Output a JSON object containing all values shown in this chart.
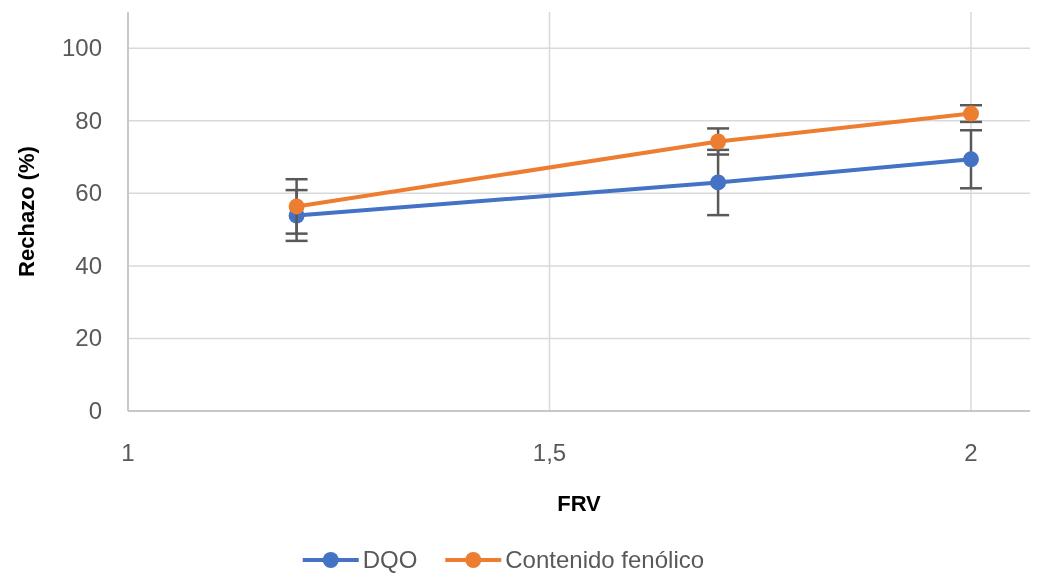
{
  "chart_data": {
    "type": "line",
    "xlabel": "FRV",
    "ylabel": "Rechazo (%)",
    "x": [
      1.2,
      1.7,
      2
    ],
    "xlim": [
      1,
      2.07
    ],
    "xticks": [
      1,
      {
        "value": 1.5,
        "label": "1,5"
      },
      2
    ],
    "ylim": [
      0,
      110
    ],
    "yticks": [
      0,
      20,
      40,
      60,
      80,
      100
    ],
    "grid": true,
    "legend": "bottom",
    "marker": "circle",
    "series": [
      {
        "name": "DQO",
        "color": "#4472c4",
        "values": [
          53.9,
          63,
          69.4
        ],
        "errors": [
          7,
          9,
          8
        ]
      },
      {
        "name": "Contenido fenólico",
        "color": "#ed7d31",
        "values": [
          56.4,
          74.3,
          82
        ],
        "errors": [
          7.5,
          3.6,
          2.3
        ]
      }
    ]
  }
}
